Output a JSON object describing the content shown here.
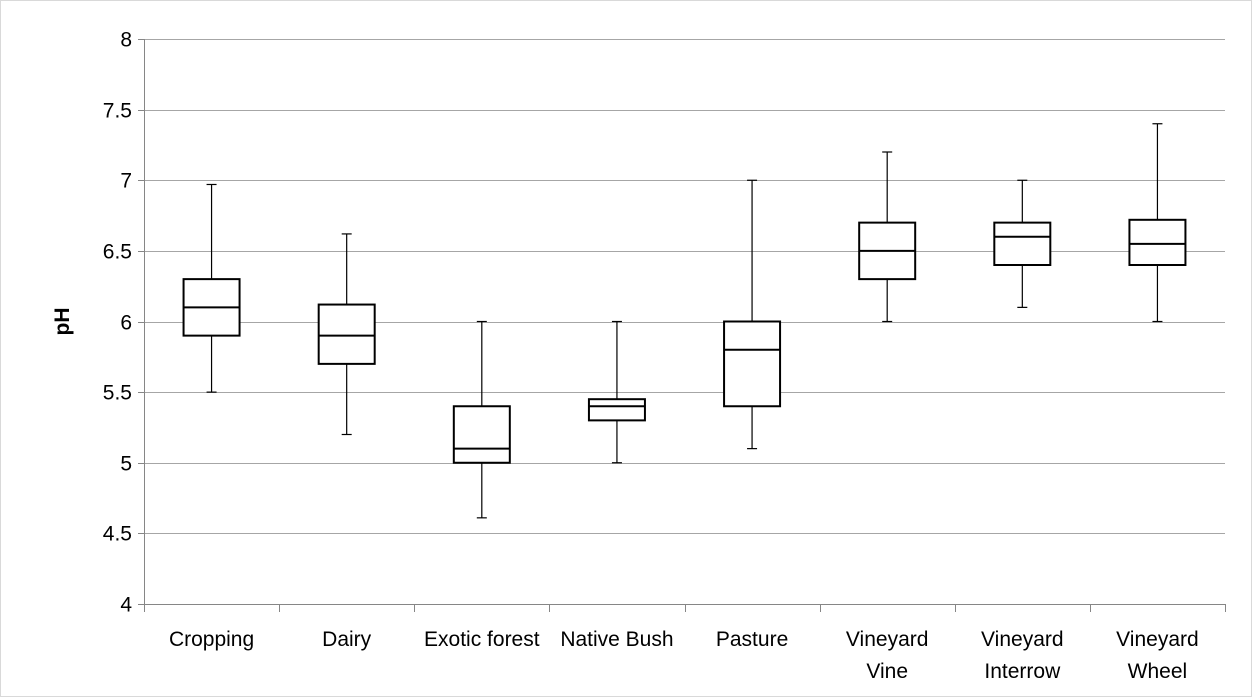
{
  "chart_data": {
    "type": "boxplot",
    "title": "",
    "xlabel": "",
    "ylabel": "pH",
    "ylim": [
      4,
      8
    ],
    "yticks": [
      4,
      4.5,
      5,
      5.5,
      6,
      6.5,
      7,
      7.5,
      8
    ],
    "ytick_labels": [
      "4",
      "4.5",
      "5",
      "5.5",
      "6",
      "6.5",
      "7",
      "7.5",
      "8"
    ],
    "grid": true,
    "legend": "none",
    "colors": {
      "box_fill": "#ffffff",
      "box_stroke": "#000000",
      "grid": "#a6a6a6",
      "axis": "#868686"
    },
    "categories": [
      {
        "label_lines": [
          "Cropping"
        ],
        "min": 5.5,
        "q1": 5.9,
        "median": 6.1,
        "q3": 6.3,
        "max": 6.97
      },
      {
        "label_lines": [
          "Dairy"
        ],
        "min": 5.2,
        "q1": 5.7,
        "median": 5.9,
        "q3": 6.12,
        "max": 6.62
      },
      {
        "label_lines": [
          "Exotic forest"
        ],
        "min": 4.61,
        "q1": 5.0,
        "median": 5.1,
        "q3": 5.4,
        "max": 6.0
      },
      {
        "label_lines": [
          "Native Bush"
        ],
        "min": 5.0,
        "q1": 5.3,
        "median": 5.4,
        "q3": 5.45,
        "max": 6.0
      },
      {
        "label_lines": [
          "Pasture"
        ],
        "min": 5.1,
        "q1": 5.4,
        "median": 5.8,
        "q3": 6.0,
        "max": 7.0
      },
      {
        "label_lines": [
          "Vineyard",
          "Vine"
        ],
        "min": 6.0,
        "q1": 6.3,
        "median": 6.5,
        "q3": 6.7,
        "max": 7.2
      },
      {
        "label_lines": [
          "Vineyard",
          "Interrow"
        ],
        "min": 6.1,
        "q1": 6.4,
        "median": 6.6,
        "q3": 6.7,
        "max": 7.0
      },
      {
        "label_lines": [
          "Vineyard",
          "Wheel"
        ],
        "min": 6.0,
        "q1": 6.4,
        "median": 6.55,
        "q3": 6.72,
        "max": 7.4
      }
    ]
  }
}
